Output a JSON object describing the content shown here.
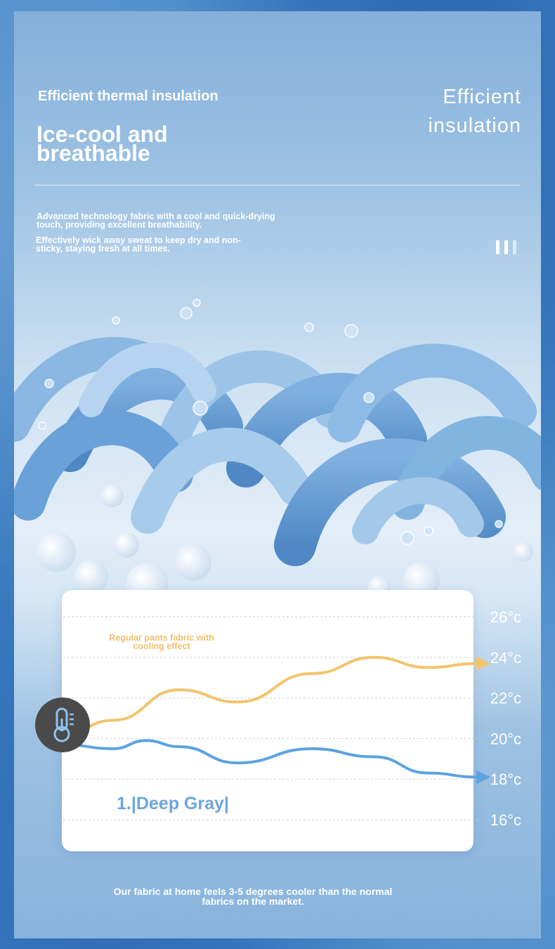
{
  "header": {
    "subtitle": "Efficient thermal insulation",
    "title": "Ice-cool and breathable",
    "right_title": "Efficient insulation"
  },
  "descriptions": [
    "Advanced technology fabric with a cool and quick-drying touch, providing excellent breathability.",
    "Effectively wick away sweat to keep dry and non-sticky, staying fresh at all times."
  ],
  "icons": {
    "pause": "pause-icon",
    "thermometer": "thermometer-icon"
  },
  "chart_data": {
    "type": "line",
    "y_unit": "°c",
    "y_ticks": [
      26,
      24,
      22,
      20,
      18,
      16
    ],
    "y_tick_labels": [
      "26°c",
      "24°c",
      "22°c",
      "20°c",
      "18°c",
      "16°c"
    ],
    "ylim": [
      16,
      26
    ],
    "grid": true,
    "series": [
      {
        "name": "Regular pants fabric with cooling effect",
        "color": "#f2c46c",
        "points": [
          [
            0,
            20.2
          ],
          [
            0.12,
            20.9
          ],
          [
            0.28,
            22.4
          ],
          [
            0.42,
            21.8
          ],
          [
            0.6,
            23.2
          ],
          [
            0.75,
            24.0
          ],
          [
            0.88,
            23.5
          ],
          [
            1,
            23.7
          ]
        ]
      },
      {
        "name": "",
        "color": "#5ca3e0",
        "points": [
          [
            0,
            19.7
          ],
          [
            0.12,
            19.5
          ],
          [
            0.2,
            19.9
          ],
          [
            0.28,
            19.6
          ],
          [
            0.42,
            18.8
          ],
          [
            0.6,
            19.5
          ],
          [
            0.75,
            19.1
          ],
          [
            0.88,
            18.3
          ],
          [
            1,
            18.1
          ]
        ]
      }
    ]
  },
  "variant_label": "1.|Deep Gray|",
  "footer": "Our fabric at home feels 3-5 degrees cooler than the normal fabrics on the market.",
  "colors": {
    "background": "#3d82c6",
    "warm_line": "#f2c46c",
    "cool_line": "#5ca3e0",
    "card": "#ffffff"
  }
}
